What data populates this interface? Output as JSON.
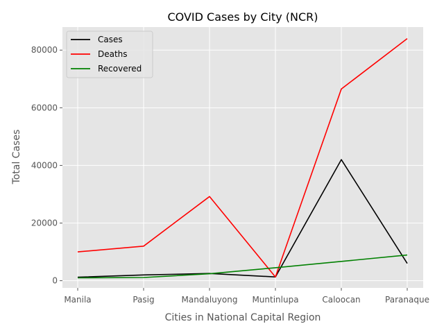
{
  "chart_data": {
    "type": "line",
    "title": "COVID Cases by City (NCR)",
    "xlabel": "Cities in National Capital Region",
    "ylabel": "Total Cases",
    "categories": [
      "Manila",
      "Pasig",
      "Mandaluyong",
      "Muntinlupa",
      "Caloocan",
      "Paranaque"
    ],
    "series": [
      {
        "name": "Cases",
        "color": "#000000",
        "values": [
          1200,
          2000,
          2500,
          1300,
          42000,
          6000
        ]
      },
      {
        "name": "Deaths",
        "color": "#ff0000",
        "values": [
          10000,
          12000,
          29200,
          1300,
          66500,
          84000
        ]
      },
      {
        "name": "Recovered",
        "color": "#008000",
        "values": [
          1000,
          1100,
          2400,
          4500,
          6700,
          8900
        ]
      }
    ],
    "ylim": [
      -2500,
      88000
    ],
    "yticks": [
      0,
      20000,
      40000,
      60000,
      80000
    ],
    "grid": true,
    "legend": "top-left",
    "background": "#e5e5e5"
  }
}
